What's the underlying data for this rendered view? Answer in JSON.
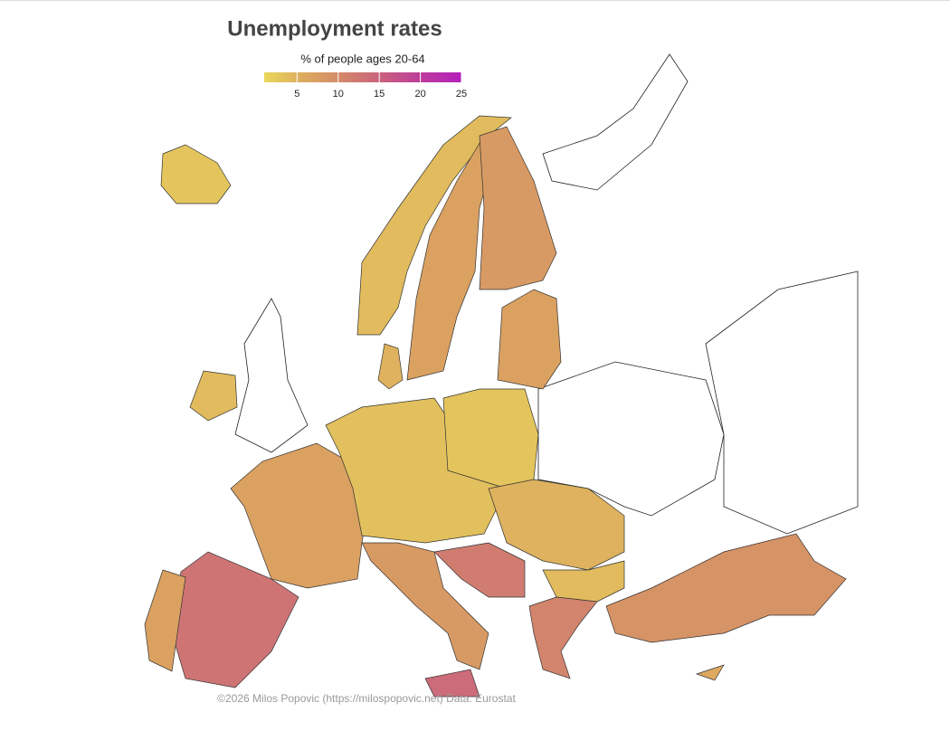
{
  "map": {
    "title": "Unemployment rates",
    "subtitle": "% of people ages 20-64",
    "colorbar": {
      "lim": [
        1,
        25
      ],
      "ticks": [
        5,
        10,
        15,
        20,
        25
      ],
      "colors": [
        "#e9d85c",
        "#dcaa5e",
        "#d3876a",
        "#c9607f",
        "#bc3c9c",
        "#b41fbc"
      ]
    },
    "region_values": [
      3,
      4,
      7,
      8,
      7,
      4,
      5,
      7,
      13,
      7,
      3.5,
      3,
      8,
      14,
      12,
      5,
      4,
      11,
      9,
      6
    ],
    "credit": "©2026 Milos Popovic (https://milospopovic.net) Data: Eurostat"
  }
}
